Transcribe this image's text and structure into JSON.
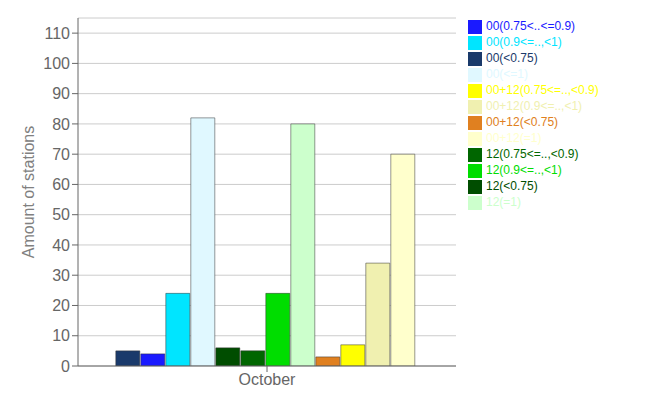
{
  "chart_data": {
    "type": "bar",
    "ylabel": "Amount of stations",
    "categories": [
      "October"
    ],
    "series": [
      {
        "name": "00(<0.75)",
        "color": "#1a3a6b",
        "values": [
          5
        ]
      },
      {
        "name": "00(0.75<..<=0.9)",
        "color": "#1a1aff",
        "values": [
          4
        ]
      },
      {
        "name": "00(0.9<=..,<1)",
        "color": "#00e5ff",
        "values": [
          24
        ]
      },
      {
        "name": "00(<=1)",
        "color": "#e0f8ff",
        "values": [
          82
        ]
      },
      {
        "name": "12(<0.75)",
        "color": "#004d00",
        "values": [
          6
        ]
      },
      {
        "name": "12(0.75<=..,<0.9)",
        "color": "#006600",
        "values": [
          5
        ]
      },
      {
        "name": "12(0.9<=..,<1)",
        "color": "#00dd00",
        "values": [
          24
        ]
      },
      {
        "name": "12(=1)",
        "color": "#ccffcc",
        "values": [
          80
        ]
      },
      {
        "name": "00+12(<0.75)",
        "color": "#e08020",
        "values": [
          3
        ]
      },
      {
        "name": "00+12(0.75<=..,<0.9)",
        "color": "#ffff00",
        "values": [
          7
        ]
      },
      {
        "name": "00+12(0.9<=..,<1)",
        "color": "#f0f0b0",
        "values": [
          34
        ]
      },
      {
        "name": "00+12(=1)",
        "color": "#ffffcc",
        "values": [
          70
        ]
      }
    ],
    "ylim": [
      0,
      115
    ],
    "yticks": [
      0,
      10,
      20,
      30,
      40,
      50,
      60,
      70,
      80,
      90,
      100,
      110
    ],
    "grid": true,
    "legend": "upper right"
  }
}
